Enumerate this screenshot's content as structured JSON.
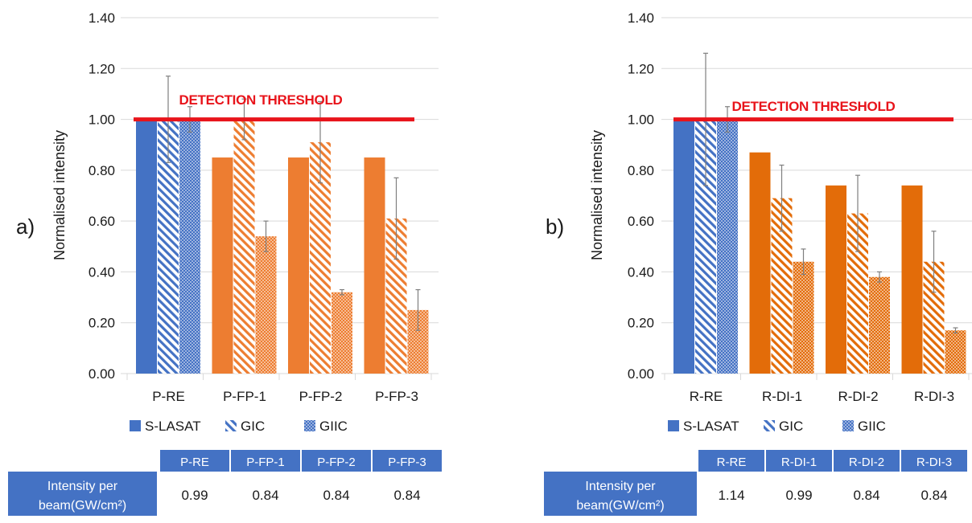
{
  "colors": {
    "slasat_ref": "#4472c4",
    "orange_a": "#ed7d31",
    "orange_b": "#e36c09",
    "threshold": "#e8141b",
    "table_header": "#4472c4",
    "grid": "#d9d9d9"
  },
  "chart_data": [
    {
      "type": "bar",
      "panel_label": "a)",
      "ylabel": "Normalised intensity",
      "ylim": [
        0,
        1.4
      ],
      "yticks": [
        "0.00",
        "0.20",
        "0.40",
        "0.60",
        "0.80",
        "1.00",
        "1.20",
        "1.40"
      ],
      "grid": true,
      "categories": [
        "P-RE",
        "P-FP-1",
        "P-FP-2",
        "P-FP-3"
      ],
      "series": [
        {
          "name": "S-LASAT",
          "pattern": "solid",
          "values": [
            1.0,
            0.85,
            0.85,
            0.85
          ],
          "err": [
            0,
            0,
            0,
            0
          ]
        },
        {
          "name": "GIC",
          "pattern": "diagonal",
          "values": [
            1.0,
            1.0,
            0.91,
            0.61
          ],
          "err": [
            0.17,
            0.08,
            0.16,
            0.16
          ]
        },
        {
          "name": "GIIC",
          "pattern": "dotted",
          "values": [
            1.0,
            0.54,
            0.32,
            0.25
          ],
          "err": [
            0.05,
            0.06,
            0.01,
            0.08
          ]
        }
      ],
      "threshold": {
        "value": 1.0,
        "label": "DETECTION THRESHOLD"
      },
      "table": {
        "headers": [
          "P-RE",
          "P-FP-1",
          "P-FP-2",
          "P-FP-3"
        ],
        "row_label_line1": "Intensity per",
        "row_label_line2": "beam(GW/cm²)",
        "values": [
          "0.99",
          "0.84",
          "0.84",
          "0.84"
        ]
      }
    },
    {
      "type": "bar",
      "panel_label": "b)",
      "ylabel": "Normalised intensity",
      "ylim": [
        0,
        1.4
      ],
      "yticks": [
        "0.00",
        "0.20",
        "0.40",
        "0.60",
        "0.80",
        "1.00",
        "1.20",
        "1.40"
      ],
      "grid": true,
      "categories": [
        "R-RE",
        "R-DI-1",
        "R-DI-2",
        "R-DI-3"
      ],
      "series": [
        {
          "name": "S-LASAT",
          "pattern": "solid",
          "values": [
            1.0,
            0.87,
            0.74,
            0.74
          ],
          "err": [
            0,
            0,
            0,
            0
          ]
        },
        {
          "name": "GIC",
          "pattern": "diagonal",
          "values": [
            1.0,
            0.69,
            0.63,
            0.44
          ],
          "err": [
            0.26,
            0.13,
            0.15,
            0.12
          ]
        },
        {
          "name": "GIIC",
          "pattern": "dotted",
          "values": [
            1.0,
            0.44,
            0.38,
            0.17
          ],
          "err": [
            0.05,
            0.05,
            0.02,
            0.01
          ]
        }
      ],
      "threshold": {
        "value": 1.0,
        "label": "DETECTION THRESHOLD"
      },
      "table": {
        "headers": [
          "R-RE",
          "R-DI-1",
          "R-DI-2",
          "R-DI-3"
        ],
        "row_label_line1": "Intensity per",
        "row_label_line2": "beam(GW/cm²)",
        "values": [
          "1.14",
          "0.99",
          "0.84",
          "0.84"
        ]
      }
    }
  ]
}
